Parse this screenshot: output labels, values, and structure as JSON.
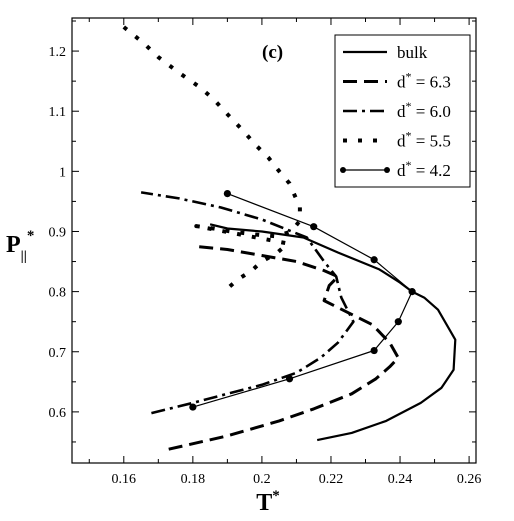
{
  "chart_data": {
    "type": "line",
    "title": "",
    "panel_label": "(c)",
    "xlabel": {
      "main": "T",
      "sup": "*"
    },
    "ylabel": {
      "main": "P",
      "sub": "||",
      "sup": "*"
    },
    "xlim": [
      0.145,
      0.262
    ],
    "ylim": [
      0.515,
      1.255
    ],
    "xticks": [
      0.16,
      0.18,
      0.2,
      0.22,
      0.24,
      0.26
    ],
    "xtick_labels": [
      "0.16",
      "0.18",
      "0.2",
      "0.22",
      "0.24",
      "0.26"
    ],
    "yticks": [
      0.6,
      0.7,
      0.8,
      0.9,
      1.0,
      1.1,
      1.2
    ],
    "ytick_labels": [
      "0.6",
      "0.7",
      "0.8",
      "0.9",
      "1",
      "1.1",
      "1.2"
    ],
    "grid": false,
    "legend_position": "top-right",
    "series": [
      {
        "name": "bulk",
        "legend_main": "bulk",
        "legend_sup": "",
        "legend_value": "",
        "style": "solid",
        "markers": false,
        "points": [
          [
            0.216,
            0.553
          ],
          [
            0.226,
            0.565
          ],
          [
            0.236,
            0.585
          ],
          [
            0.246,
            0.615
          ],
          [
            0.252,
            0.64
          ],
          [
            0.2555,
            0.67
          ],
          [
            0.256,
            0.72
          ],
          [
            0.254,
            0.74
          ],
          [
            0.251,
            0.77
          ],
          [
            0.247,
            0.79
          ],
          [
            0.2435,
            0.8
          ],
          [
            0.24,
            0.815
          ],
          [
            0.234,
            0.837
          ],
          [
            0.222,
            0.865
          ],
          [
            0.212,
            0.89
          ],
          [
            0.2,
            0.9
          ],
          [
            0.19,
            0.905
          ],
          [
            0.185,
            0.912
          ]
        ]
      },
      {
        "name": "d* = 6.3",
        "legend_main": "d",
        "legend_sup": "*",
        "legend_value": " = 6.3",
        "style": "dashed",
        "markers": false,
        "points": [
          [
            0.173,
            0.538
          ],
          [
            0.19,
            0.56
          ],
          [
            0.205,
            0.585
          ],
          [
            0.215,
            0.605
          ],
          [
            0.226,
            0.63
          ],
          [
            0.233,
            0.655
          ],
          [
            0.237,
            0.675
          ],
          [
            0.2395,
            0.69
          ],
          [
            0.237,
            0.715
          ],
          [
            0.232,
            0.745
          ],
          [
            0.225,
            0.765
          ],
          [
            0.218,
            0.785
          ],
          [
            0.2195,
            0.81
          ],
          [
            0.222,
            0.825
          ],
          [
            0.218,
            0.835
          ],
          [
            0.21,
            0.85
          ],
          [
            0.2,
            0.86
          ],
          [
            0.19,
            0.87
          ],
          [
            0.181,
            0.875
          ]
        ]
      },
      {
        "name": "d* = 6.0",
        "legend_main": "d",
        "legend_sup": "*",
        "legend_value": " = 6.0",
        "style": "dashdot",
        "markers": false,
        "points": [
          [
            0.168,
            0.598
          ],
          [
            0.18,
            0.615
          ],
          [
            0.19,
            0.63
          ],
          [
            0.2,
            0.645
          ],
          [
            0.21,
            0.665
          ],
          [
            0.217,
            0.69
          ],
          [
            0.222,
            0.715
          ],
          [
            0.2265,
            0.75
          ],
          [
            0.223,
            0.79
          ],
          [
            0.2215,
            0.825
          ],
          [
            0.218,
            0.85
          ],
          [
            0.213,
            0.89
          ],
          [
            0.2,
            0.92
          ],
          [
            0.188,
            0.94
          ],
          [
            0.176,
            0.955
          ],
          [
            0.165,
            0.965
          ]
        ]
      },
      {
        "name": "d* = 5.5",
        "legend_main": "d",
        "legend_sup": "*",
        "legend_value": " = 5.5",
        "style": "dotted",
        "markers": false,
        "points": [
          [
            0.16,
            1.24
          ],
          [
            0.166,
            1.212
          ],
          [
            0.17,
            1.19
          ],
          [
            0.176,
            1.164
          ],
          [
            0.182,
            1.14
          ],
          [
            0.186,
            1.12
          ],
          [
            0.19,
            1.095
          ],
          [
            0.195,
            1.065
          ],
          [
            0.198,
            1.045
          ],
          [
            0.202,
            1.022
          ],
          [
            0.205,
            1.0
          ],
          [
            0.208,
            0.98
          ],
          [
            0.2095,
            0.96
          ],
          [
            0.211,
            0.94
          ],
          [
            0.211,
            0.918
          ],
          [
            0.2085,
            0.9
          ],
          [
            0.204,
            0.892
          ],
          [
            0.198,
            0.895
          ],
          [
            0.191,
            0.9
          ],
          [
            0.186,
            0.905
          ],
          [
            0.181,
            0.909
          ],
          [
            0.2075,
            0.88
          ],
          [
            0.2045,
            0.865
          ],
          [
            0.2,
            0.85
          ],
          [
            0.197,
            0.835
          ],
          [
            0.193,
            0.82
          ],
          [
            0.19,
            0.805
          ]
        ]
      },
      {
        "name": "d* = 4.2",
        "legend_main": "d",
        "legend_sup": "*",
        "legend_value": " = 4.2",
        "style": "solid",
        "markers": true,
        "points": [
          [
            0.18,
            0.608
          ],
          [
            0.208,
            0.655
          ],
          [
            0.2325,
            0.702
          ],
          [
            0.2395,
            0.75
          ],
          [
            0.2435,
            0.8
          ],
          [
            0.2325,
            0.853
          ],
          [
            0.215,
            0.908
          ],
          [
            0.19,
            0.963
          ]
        ]
      }
    ]
  }
}
